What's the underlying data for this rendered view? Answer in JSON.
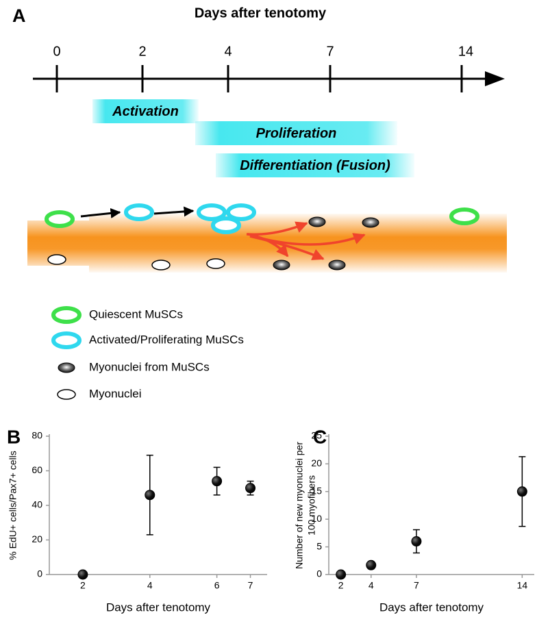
{
  "panel_a": {
    "letter": "A",
    "title": "Days after tenotomy",
    "timeline": {
      "ticks": [
        "0",
        "2",
        "4",
        "7",
        "14"
      ]
    },
    "phases": [
      "Activation",
      "Proliferation",
      "Differentiation (Fusion)"
    ],
    "legend": [
      "Quiescent MuSCs",
      "Activated/Proliferating MuSCs",
      "Myonuclei from MuSCs",
      "Myonuclei"
    ]
  },
  "chart_data": [
    {
      "type": "scatter",
      "panel": "B",
      "xlabel": "Days after tenotomy",
      "ylabel": [
        "% EdU+ cells/Pax7+ cells"
      ],
      "x": [
        2,
        4,
        6,
        7
      ],
      "series": [
        {
          "color": "#000000",
          "values": [
            0,
            46,
            54,
            50
          ],
          "errors": [
            0,
            23,
            8,
            4
          ]
        }
      ],
      "xlim": [
        1,
        7.5
      ],
      "ylim": [
        0,
        80
      ],
      "xticks": [
        2,
        4,
        6,
        7
      ],
      "yticks": [
        0,
        20,
        40,
        60,
        80
      ]
    },
    {
      "type": "scatter",
      "panel": "C",
      "xlabel": "Days after tenotomy",
      "ylabel": [
        "Number of new myonuclei per",
        "100 myofibers"
      ],
      "x": [
        2,
        4,
        7,
        14
      ],
      "series": [
        {
          "color": "#000000",
          "values": [
            0,
            1.7,
            6,
            15
          ],
          "errors": [
            0,
            0.3,
            2.1,
            6.3
          ]
        }
      ],
      "xlim": [
        1.2,
        14.8
      ],
      "ylim": [
        0,
        25
      ],
      "xticks": [
        2,
        4,
        7,
        14
      ],
      "yticks": [
        0,
        5,
        10,
        15,
        20,
        25
      ]
    }
  ]
}
